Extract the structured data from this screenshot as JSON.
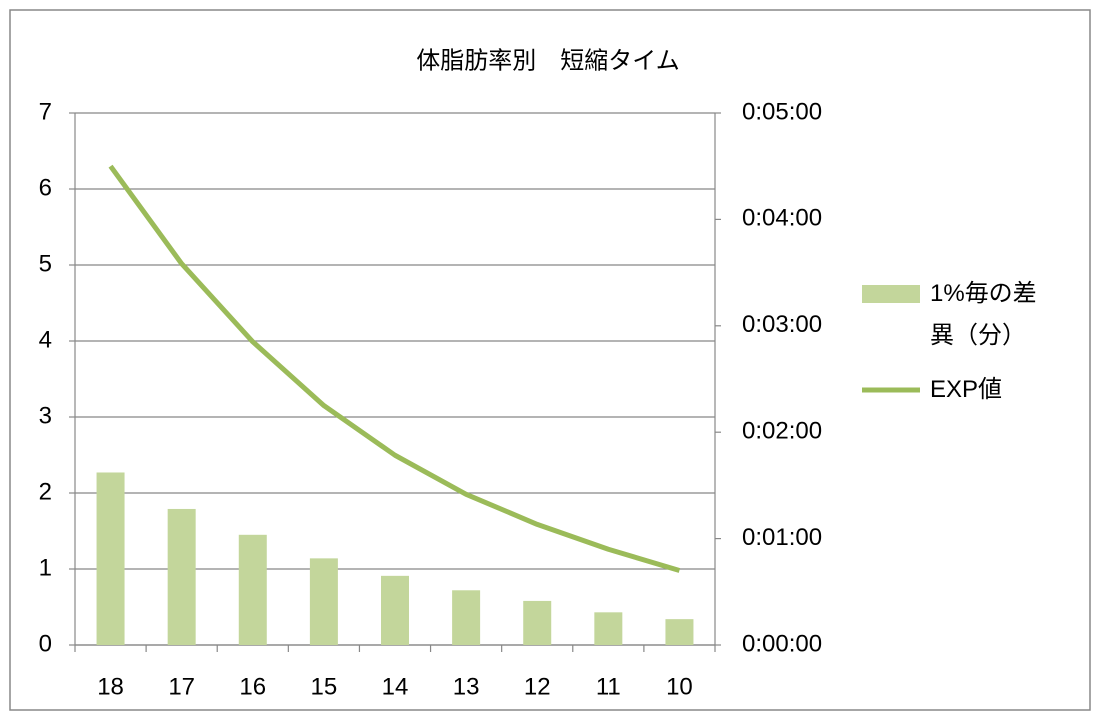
{
  "chart_data": {
    "type": "bar_line",
    "title": "体脂肪率別　短縮タイム",
    "categories": [
      "18",
      "17",
      "16",
      "15",
      "14",
      "13",
      "12",
      "11",
      "10"
    ],
    "series": [
      {
        "name": "1%毎の差異（分）",
        "type": "bar",
        "color": "#c3d69b",
        "values": [
          2.27,
          1.79,
          1.45,
          1.14,
          0.91,
          0.72,
          0.58,
          0.43,
          0.34
        ]
      },
      {
        "name": "EXP値",
        "type": "line",
        "axis": "y2",
        "color": "#9bbb59",
        "values": [
          270,
          215,
          171,
          135,
          107,
          85,
          68,
          54,
          42
        ]
      }
    ],
    "ylim": [
      0,
      7
    ],
    "yticks": [
      0,
      1,
      2,
      3,
      4,
      5,
      6,
      7
    ],
    "y2lim": [
      0,
      300
    ],
    "y2ticks": [
      {
        "value": 0,
        "label": "0:00:00"
      },
      {
        "value": 60,
        "label": "0:01:00"
      },
      {
        "value": 120,
        "label": "0:02:00"
      },
      {
        "value": 180,
        "label": "0:03:00"
      },
      {
        "value": 240,
        "label": "0:04:00"
      },
      {
        "value": 300,
        "label": "0:05:00"
      }
    ],
    "grid": true,
    "legend": "right"
  }
}
